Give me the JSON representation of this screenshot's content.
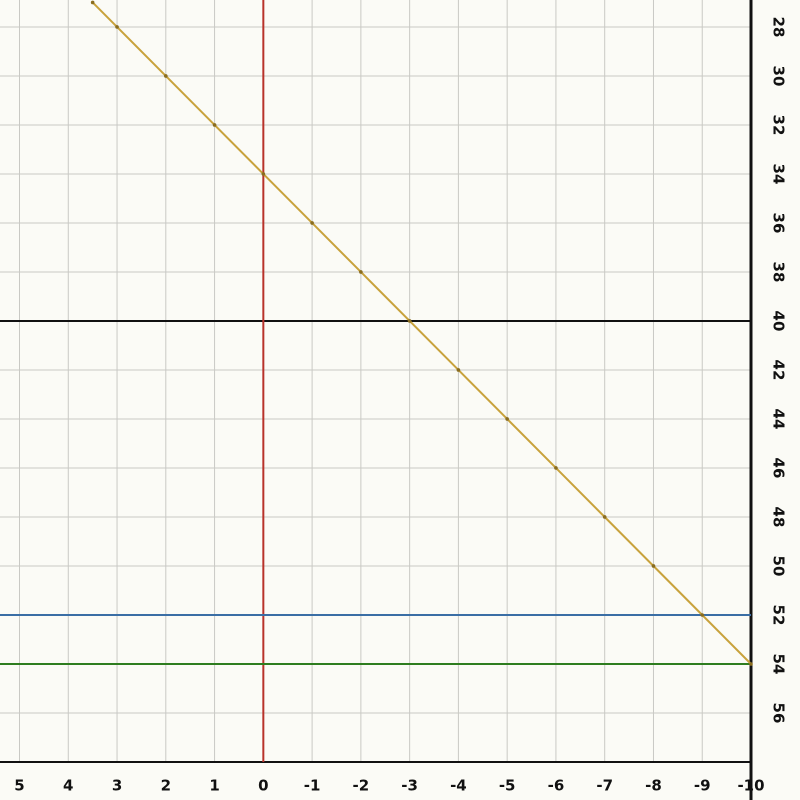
{
  "chart_data": {
    "type": "line",
    "xlim": [
      5.4,
      -10
    ],
    "ylim": [
      58,
      26.9
    ],
    "xticks": [
      5,
      4,
      3,
      2,
      1,
      0,
      -1,
      -2,
      -3,
      -4,
      -5,
      -6,
      -7,
      -8,
      -9,
      -10
    ],
    "yticks": [
      28,
      30,
      32,
      34,
      36,
      38,
      40,
      42,
      44,
      46,
      48,
      50,
      52,
      54,
      56
    ],
    "grid": true,
    "series": [
      {
        "color": "#c8a23c",
        "x": [
          3.5,
          3,
          2,
          1,
          0,
          -1,
          -2,
          -3,
          -4,
          -5,
          -6,
          -7,
          -8,
          -9,
          -10
        ],
        "values": [
          27,
          28,
          30,
          32,
          34,
          36,
          38,
          40,
          42,
          44,
          46,
          48,
          50,
          52,
          54
        ]
      }
    ],
    "reference_lines": [
      {
        "axis": "y",
        "value": 40,
        "color": "#111111"
      },
      {
        "axis": "x",
        "value": 0,
        "color": "#b8322a"
      },
      {
        "axis": "y",
        "value": 52,
        "color": "#3a6ea5"
      },
      {
        "axis": "y",
        "value": 54,
        "color": "#2e7d1f"
      }
    ]
  }
}
